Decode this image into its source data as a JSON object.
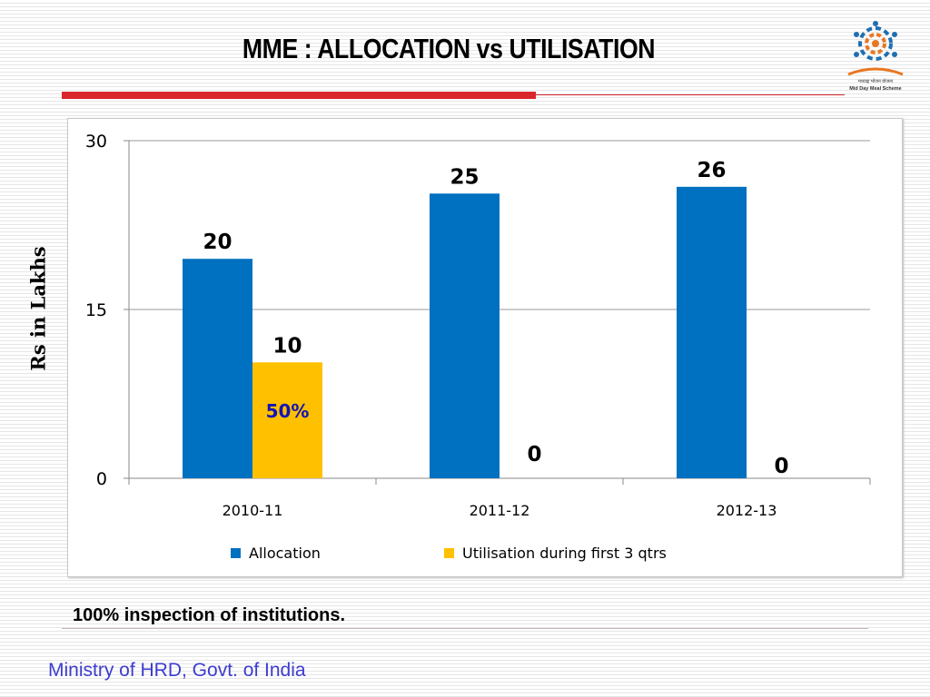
{
  "slide": {
    "title": "MME : ALLOCATION vs UTILISATION",
    "logo_caption_1": "मध्याह्न भोजन योजना",
    "logo_caption_2": "Mid Day Meal Scheme",
    "note": "100% inspection of institutions.",
    "footer": "Ministry of HRD, Govt. of India"
  },
  "colors": {
    "allocation": "#0070c0",
    "utilisation": "#ffc000",
    "annotation": "#1414b4",
    "accent_red": "#d9262b",
    "footer_text": "#3c3ccf"
  },
  "chart_data": {
    "type": "bar",
    "categories": [
      "2010-11",
      "2011-12",
      "2012-13"
    ],
    "series": [
      {
        "name": "Allocation",
        "values": [
          19.5,
          25.3,
          25.9
        ],
        "labels": [
          "20",
          "25",
          "26"
        ]
      },
      {
        "name": "Utilisation during first 3 qtrs",
        "values": [
          10.3,
          0,
          0
        ],
        "labels": [
          "10",
          "0",
          "0"
        ]
      }
    ],
    "annotation": {
      "text": "50%",
      "category": "2010-11",
      "series": "Utilisation during first 3 qtrs"
    },
    "ylabel": "Rs in Lakhs",
    "yticks": [
      0,
      15,
      30
    ],
    "ylim": [
      0,
      30
    ],
    "grid": true,
    "legend": "bottom"
  }
}
